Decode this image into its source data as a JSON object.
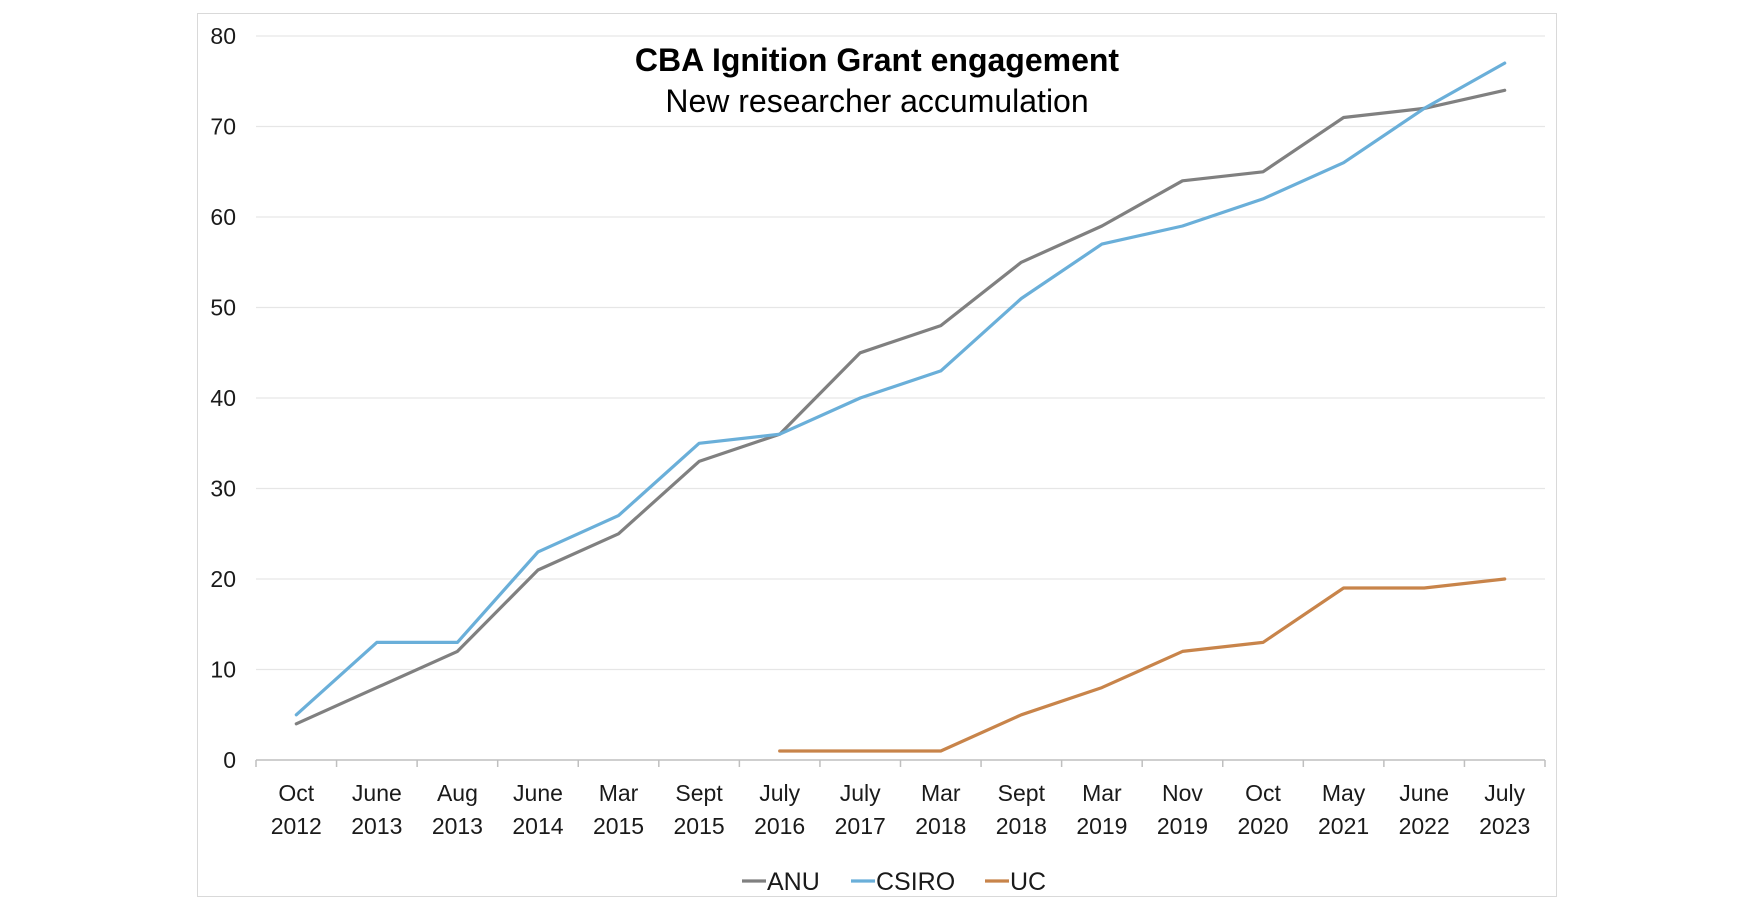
{
  "chart_data": {
    "type": "line",
    "title": "CBA Ignition Grant engagement",
    "subtitle": "New researcher accumulation",
    "xlabel": "",
    "ylabel": "",
    "ylim": [
      0,
      80
    ],
    "yticks": [
      0,
      10,
      20,
      30,
      40,
      50,
      60,
      70,
      80
    ],
    "grid": true,
    "legend_position": "bottom",
    "categories": [
      [
        "Oct",
        "2012"
      ],
      [
        "June",
        "2013"
      ],
      [
        "Aug",
        "2013"
      ],
      [
        "June",
        "2014"
      ],
      [
        "Mar",
        "2015"
      ],
      [
        "Sept",
        "2015"
      ],
      [
        "July",
        "2016"
      ],
      [
        "July",
        "2017"
      ],
      [
        "Mar",
        "2018"
      ],
      [
        "Sept",
        "2018"
      ],
      [
        "Mar",
        "2019"
      ],
      [
        "Nov",
        "2019"
      ],
      [
        "Oct",
        "2020"
      ],
      [
        "May",
        "2021"
      ],
      [
        "June",
        "2022"
      ],
      [
        "July",
        "2023"
      ]
    ],
    "series": [
      {
        "name": "ANU",
        "color": "#808080",
        "values": [
          4,
          8,
          12,
          21,
          25,
          33,
          36,
          45,
          48,
          55,
          59,
          64,
          65,
          71,
          72,
          74
        ]
      },
      {
        "name": "CSIRO",
        "color": "#6aafd9",
        "values": [
          5,
          13,
          13,
          23,
          27,
          35,
          36,
          40,
          43,
          51,
          57,
          59,
          62,
          66,
          72,
          77
        ]
      },
      {
        "name": "UC",
        "color": "#c8844a",
        "values": [
          null,
          null,
          null,
          null,
          null,
          null,
          1,
          1,
          1,
          5,
          8,
          12,
          13,
          19,
          19,
          20
        ]
      }
    ]
  }
}
